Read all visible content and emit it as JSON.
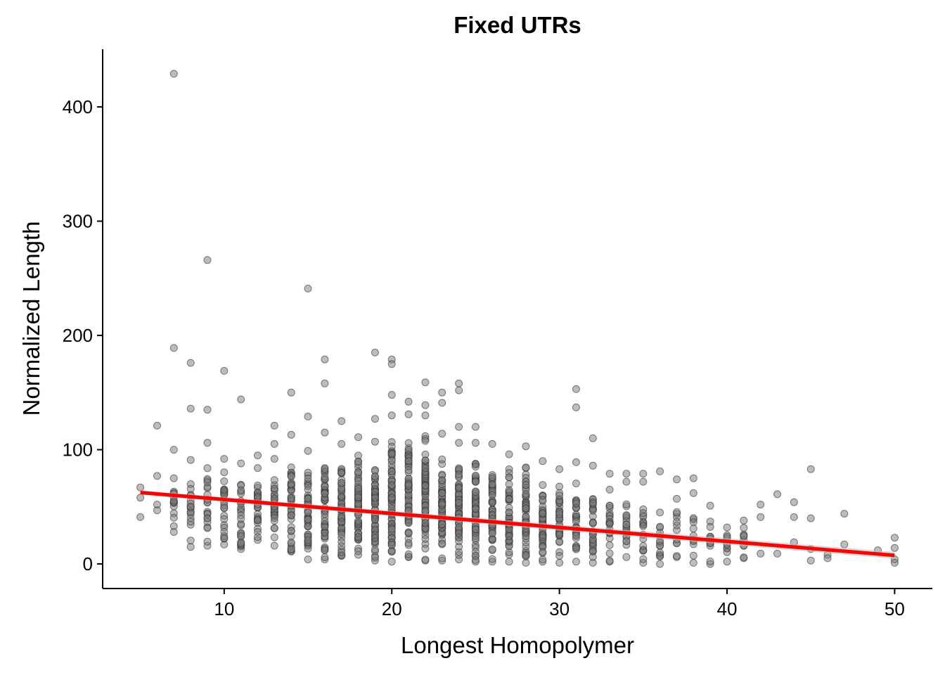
{
  "chart_data": {
    "type": "scatter",
    "title": "Fixed UTRs",
    "xlabel": "Longest Homopolymer",
    "ylabel": "Normalized Length",
    "xlim": [
      2.75,
      52.25
    ],
    "ylim": [
      -21.5,
      450.5
    ],
    "xticks": [
      10,
      20,
      30,
      40,
      50
    ],
    "yticks": [
      0,
      100,
      200,
      300,
      400
    ],
    "grid": false,
    "point_color": "#7a7a7a",
    "point_stroke": "#333333",
    "fit_color": "#ff0000",
    "ci_color": "#bdbdbd",
    "fit_line": {
      "method": "lm",
      "x": [
        5,
        50
      ],
      "y": [
        62.5,
        7.5
      ]
    },
    "outliers": [
      {
        "x": 7,
        "y": 429
      },
      {
        "x": 9,
        "y": 266
      },
      {
        "x": 15,
        "y": 241
      },
      {
        "x": 7,
        "y": 189
      },
      {
        "x": 8,
        "y": 176
      },
      {
        "x": 10,
        "y": 169
      },
      {
        "x": 11,
        "y": 144
      },
      {
        "x": 8,
        "y": 136
      },
      {
        "x": 9,
        "y": 135
      },
      {
        "x": 6,
        "y": 121
      },
      {
        "x": 14,
        "y": 150
      },
      {
        "x": 15,
        "y": 129
      },
      {
        "x": 16,
        "y": 179
      },
      {
        "x": 16,
        "y": 158
      },
      {
        "x": 17,
        "y": 125
      },
      {
        "x": 19,
        "y": 185
      },
      {
        "x": 19,
        "y": 127
      },
      {
        "x": 20,
        "y": 179
      },
      {
        "x": 20,
        "y": 175
      },
      {
        "x": 20,
        "y": 148
      },
      {
        "x": 21,
        "y": 142
      },
      {
        "x": 22,
        "y": 159
      },
      {
        "x": 22,
        "y": 139
      },
      {
        "x": 23,
        "y": 150
      },
      {
        "x": 23,
        "y": 141
      },
      {
        "x": 24,
        "y": 158
      },
      {
        "x": 24,
        "y": 152
      },
      {
        "x": 24,
        "y": 120
      },
      {
        "x": 25,
        "y": 120
      },
      {
        "x": 31,
        "y": 153
      },
      {
        "x": 31,
        "y": 137
      },
      {
        "x": 32,
        "y": 110
      },
      {
        "x": 33,
        "y": 79
      },
      {
        "x": 34,
        "y": 79
      },
      {
        "x": 35,
        "y": 79
      },
      {
        "x": 36,
        "y": 81
      },
      {
        "x": 37,
        "y": 74
      },
      {
        "x": 38,
        "y": 75
      },
      {
        "x": 42,
        "y": 52
      },
      {
        "x": 42,
        "y": 41
      },
      {
        "x": 42,
        "y": 9
      },
      {
        "x": 43,
        "y": 61
      },
      {
        "x": 43,
        "y": 9
      },
      {
        "x": 44,
        "y": 54
      },
      {
        "x": 44,
        "y": 41
      },
      {
        "x": 44,
        "y": 19
      },
      {
        "x": 45,
        "y": 83
      },
      {
        "x": 45,
        "y": 40
      },
      {
        "x": 45,
        "y": 13
      },
      {
        "x": 45,
        "y": 3
      },
      {
        "x": 46,
        "y": 8
      },
      {
        "x": 46,
        "y": 5
      },
      {
        "x": 47,
        "y": 44
      },
      {
        "x": 47,
        "y": 17
      },
      {
        "x": 49,
        "y": 12
      },
      {
        "x": 50,
        "y": 23
      },
      {
        "x": 50,
        "y": 14
      },
      {
        "x": 50,
        "y": 4
      },
      {
        "x": 50,
        "y": 1
      },
      {
        "x": 5,
        "y": 67
      },
      {
        "x": 5,
        "y": 58
      },
      {
        "x": 5,
        "y": 41
      },
      {
        "x": 6,
        "y": 77
      },
      {
        "x": 6,
        "y": 52
      },
      {
        "x": 6,
        "y": 47
      },
      {
        "x": 7,
        "y": 100
      },
      {
        "x": 7,
        "y": 28
      },
      {
        "x": 12,
        "y": 95
      },
      {
        "x": 13,
        "y": 121
      },
      {
        "x": 13,
        "y": 105
      }
    ],
    "columns": [
      {
        "x": 7,
        "n": 14,
        "min": 33,
        "max": 75
      },
      {
        "x": 8,
        "n": 18,
        "min": 15,
        "max": 91
      },
      {
        "x": 9,
        "n": 22,
        "min": 16,
        "max": 106
      },
      {
        "x": 10,
        "n": 26,
        "min": 17,
        "max": 92
      },
      {
        "x": 11,
        "n": 26,
        "min": 13,
        "max": 88
      },
      {
        "x": 12,
        "n": 28,
        "min": 21,
        "max": 84
      },
      {
        "x": 13,
        "n": 34,
        "min": 16,
        "max": 92
      },
      {
        "x": 14,
        "n": 40,
        "min": 11,
        "max": 113
      },
      {
        "x": 15,
        "n": 44,
        "min": 4,
        "max": 99
      },
      {
        "x": 16,
        "n": 55,
        "min": 4,
        "max": 115
      },
      {
        "x": 17,
        "n": 55,
        "min": 7,
        "max": 105
      },
      {
        "x": 18,
        "n": 65,
        "min": 8,
        "max": 111
      },
      {
        "x": 19,
        "n": 65,
        "min": 3,
        "max": 107
      },
      {
        "x": 20,
        "n": 75,
        "min": 2,
        "max": 130
      },
      {
        "x": 21,
        "n": 70,
        "min": 6,
        "max": 131
      },
      {
        "x": 22,
        "n": 75,
        "min": 3,
        "max": 130
      },
      {
        "x": 23,
        "n": 65,
        "min": 3,
        "max": 114
      },
      {
        "x": 24,
        "n": 62,
        "min": 4,
        "max": 106
      },
      {
        "x": 25,
        "n": 60,
        "min": 2,
        "max": 106
      },
      {
        "x": 26,
        "n": 55,
        "min": 2,
        "max": 105
      },
      {
        "x": 27,
        "n": 55,
        "min": 2,
        "max": 96
      },
      {
        "x": 28,
        "n": 55,
        "min": 1,
        "max": 103
      },
      {
        "x": 29,
        "n": 48,
        "min": 2,
        "max": 90
      },
      {
        "x": 30,
        "n": 35,
        "min": 1,
        "max": 83
      },
      {
        "x": 31,
        "n": 32,
        "min": 2,
        "max": 89
      },
      {
        "x": 32,
        "n": 32,
        "min": 1,
        "max": 86
      },
      {
        "x": 33,
        "n": 24,
        "min": 2,
        "max": 65
      },
      {
        "x": 34,
        "n": 20,
        "min": 6,
        "max": 72
      },
      {
        "x": 35,
        "n": 18,
        "min": 1,
        "max": 72
      },
      {
        "x": 36,
        "n": 14,
        "min": 0,
        "max": 45
      },
      {
        "x": 37,
        "n": 12,
        "min": 6,
        "max": 57
      },
      {
        "x": 38,
        "n": 12,
        "min": 1,
        "max": 62
      },
      {
        "x": 39,
        "n": 12,
        "min": 0,
        "max": 51
      },
      {
        "x": 40,
        "n": 10,
        "min": 2,
        "max": 32
      },
      {
        "x": 41,
        "n": 10,
        "min": 5,
        "max": 38
      }
    ]
  }
}
